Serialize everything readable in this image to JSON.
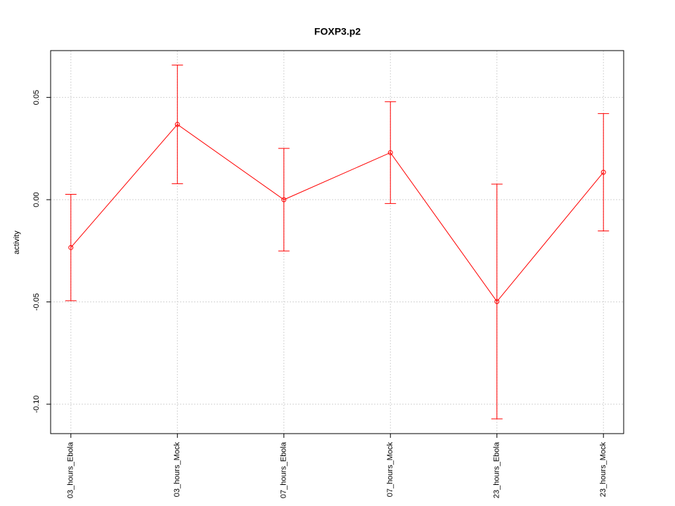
{
  "chart_data": {
    "type": "line",
    "title": "FOXP3.p2",
    "y_label": "activity",
    "categories": [
      "03_hours_Ebola",
      "03_hours_Mock",
      "07_hours_Ebola",
      "07_hours_Mock",
      "23_hours_Ebola",
      "23_hours_Mock"
    ],
    "series": [
      {
        "name": "activity",
        "color": "#ff0000",
        "values": [
          -0.0234,
          0.0368,
          0.0,
          0.023,
          -0.0498,
          0.0134
        ],
        "errors": [
          0.026,
          0.029,
          0.0251,
          0.0249,
          0.0574,
          0.0287
        ]
      }
    ],
    "ylim": [
      -0.1144,
      0.0729
    ],
    "yticks": [
      {
        "value": -0.1,
        "label": "-0.10"
      },
      -0.05,
      {
        "value": 0,
        "label": "0.00"
      },
      0.05
    ],
    "grid": true
  }
}
